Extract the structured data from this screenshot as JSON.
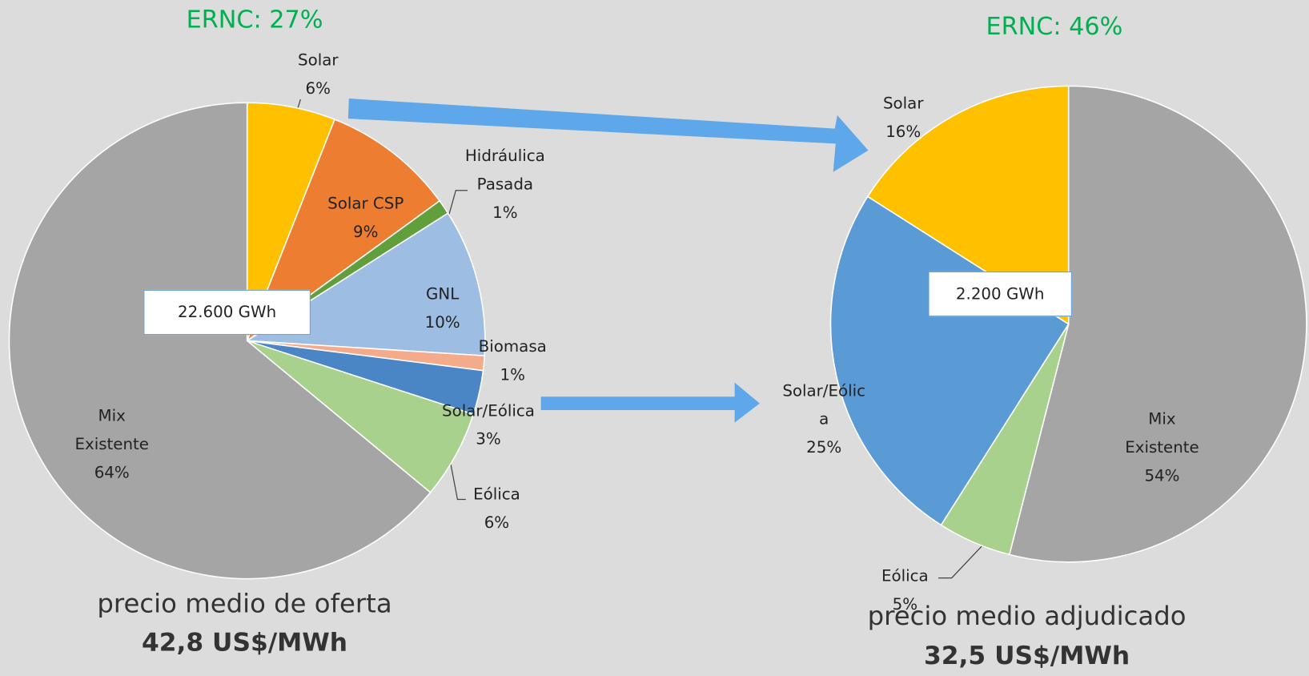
{
  "chart_data": [
    {
      "type": "pie",
      "title": "ERNC: 27%",
      "categories": [
        "Solar",
        "Solar CSP",
        "Hidráulica Pasada",
        "GNL",
        "Biomasa",
        "Solar/Eólica",
        "Eólica",
        "Mix Existente"
      ],
      "values": [
        6,
        9,
        1,
        10,
        1,
        3,
        6,
        64
      ],
      "value_labels": [
        "6%",
        "9%",
        "1%",
        "10%",
        "1%",
        "3%",
        "6%",
        "64%"
      ],
      "colors": [
        "#ffc000",
        "#ed7d31",
        "#609f3c",
        "#9dbde3",
        "#f4ab8c",
        "#4a86c5",
        "#a9d18e",
        "#a5a5a5"
      ],
      "annotation": "22.600 GWh",
      "subtitle": "precio medio de oferta",
      "caption": "42,8 US$/MWh"
    },
    {
      "type": "pie",
      "title": "ERNC: 46%",
      "categories": [
        "Mix Existente",
        "Eólica",
        "Solar/Eólica",
        "Solar"
      ],
      "values": [
        54,
        5,
        25,
        16
      ],
      "value_labels": [
        "54%",
        "5%",
        "25%",
        "16%"
      ],
      "colors": [
        "#a5a5a5",
        "#a9d18e",
        "#5b9bd5",
        "#ffc000"
      ],
      "annotation": "2.200 GWh",
      "subtitle": "precio medio adjudicado",
      "caption": "32,5 US$/MWh"
    }
  ]
}
